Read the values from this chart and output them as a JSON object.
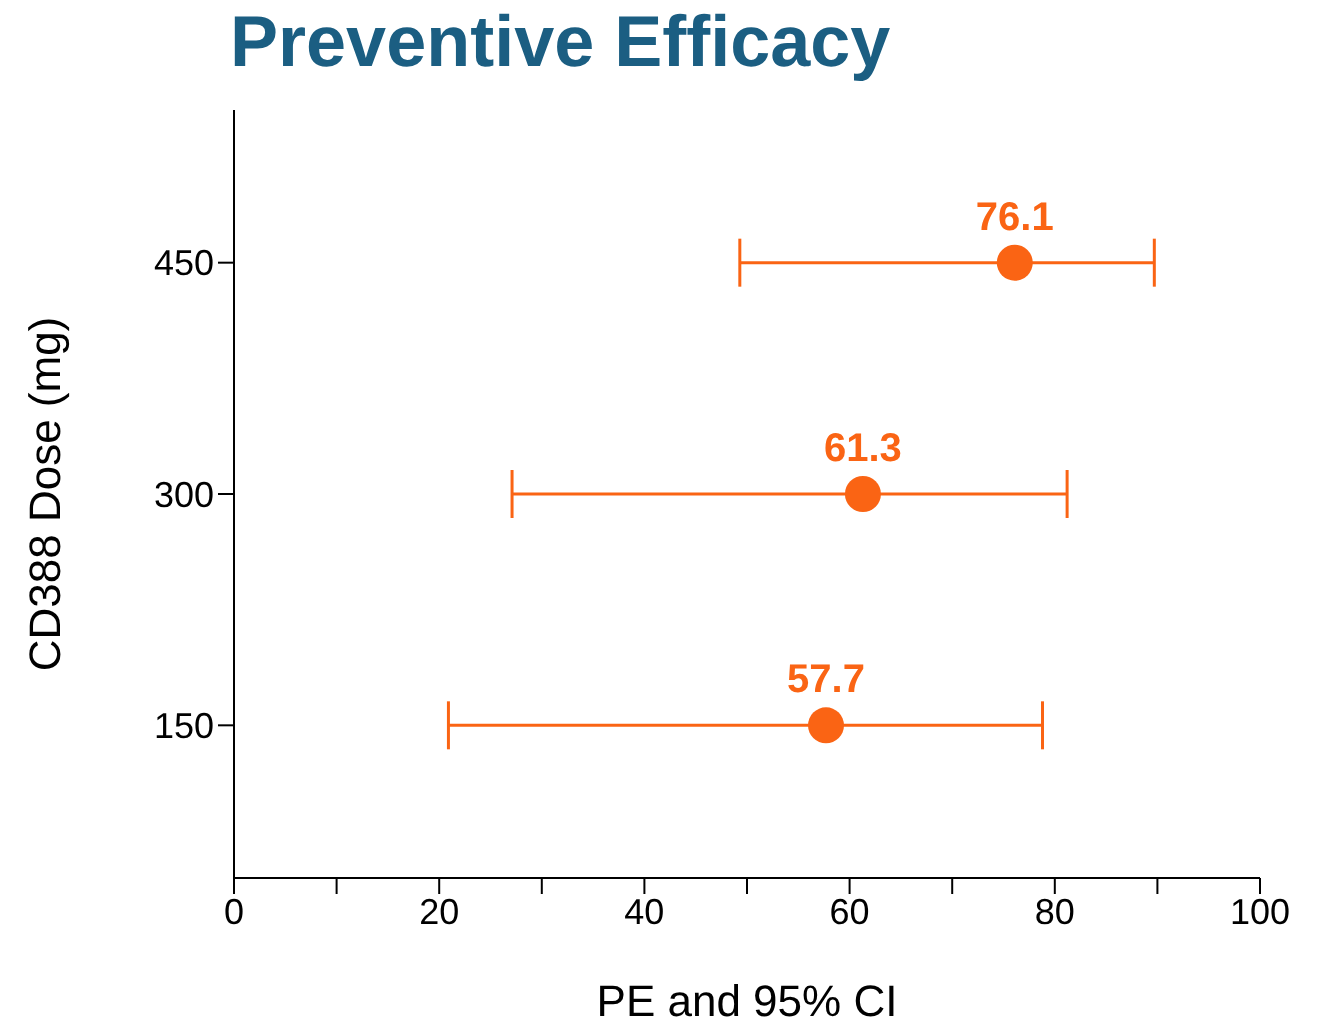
{
  "chart_data": {
    "type": "scatter",
    "orientation": "horizontal",
    "title": "Preventive Efficacy",
    "xlabel": "PE and 95% CI",
    "ylabel": "CD388 Dose (mg)",
    "categories": [
      "450",
      "300",
      "150"
    ],
    "values": [
      76.1,
      61.3,
      57.7
    ],
    "errors": [
      [
        49.3,
        89.7
      ],
      [
        27.1,
        81.2
      ],
      [
        20.9,
        78.8
      ]
    ],
    "data_labels": true,
    "color": "#fa6414",
    "xlim": [
      0,
      100
    ],
    "xticks": [
      0,
      {
        "value": 10,
        "label": null
      },
      20,
      {
        "value": 30,
        "label": null
      },
      40,
      {
        "value": 50,
        "label": null
      },
      60,
      {
        "value": 70,
        "label": null
      },
      80,
      {
        "value": 90,
        "label": null
      },
      100
    ],
    "grid": false,
    "legend": false,
    "marker": "circle"
  }
}
